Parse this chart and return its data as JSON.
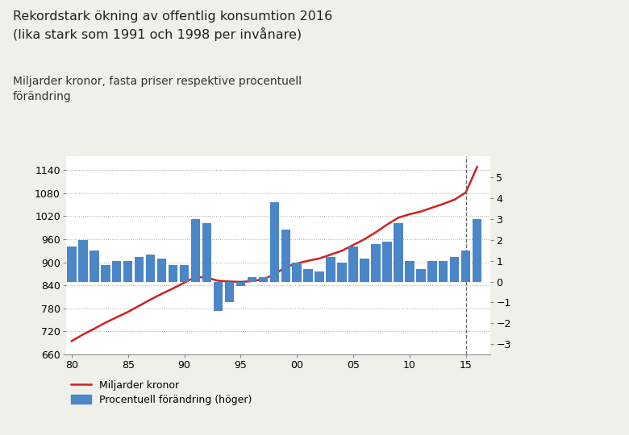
{
  "title": "Rekordstark ökning av offentlig konsumtion 2016\n(lika stark som 1991 och 1998 per invånare)",
  "subtitle": "Miljarder kronor, fasta priser respektive procentuell\nförändring",
  "background_color": "#f0f0ea",
  "plot_bg_color": "#ffffff",
  "bar_color": "#4a86c8",
  "line_color": "#cc2222",
  "title_fontsize": 11.5,
  "subtitle_fontsize": 10,
  "legend_fontsize": 9,
  "tick_fontsize": 9,
  "years": [
    1980,
    1981,
    1982,
    1983,
    1984,
    1985,
    1986,
    1987,
    1988,
    1989,
    1990,
    1991,
    1992,
    1993,
    1994,
    1995,
    1996,
    1997,
    1998,
    1999,
    2000,
    2001,
    2002,
    2003,
    2004,
    2005,
    2006,
    2007,
    2008,
    2009,
    2010,
    2011,
    2012,
    2013,
    2014,
    2015,
    2016
  ],
  "line_values": [
    695,
    712,
    727,
    743,
    757,
    771,
    787,
    803,
    818,
    832,
    847,
    862,
    860,
    852,
    850,
    849,
    851,
    856,
    868,
    888,
    897,
    904,
    910,
    920,
    930,
    945,
    960,
    978,
    998,
    1016,
    1025,
    1032,
    1042,
    1052,
    1063,
    1082,
    1148
  ],
  "bar_values": [
    1.7,
    2.0,
    1.5,
    0.8,
    1.0,
    1.0,
    1.2,
    1.3,
    1.1,
    0.8,
    0.8,
    3.0,
    2.8,
    -1.4,
    -1.0,
    -0.2,
    0.2,
    0.2,
    3.8,
    2.5,
    0.9,
    0.6,
    0.5,
    1.2,
    0.9,
    1.7,
    1.1,
    1.8,
    1.9,
    2.8,
    1.0,
    0.6,
    1.0,
    1.0,
    1.2,
    1.5,
    3.0
  ],
  "ylim_left": [
    660,
    1175
  ],
  "ylim_right": [
    -3.5,
    6.0
  ],
  "yticks_left": [
    660,
    720,
    780,
    840,
    900,
    960,
    1020,
    1080,
    1140
  ],
  "yticks_right": [
    -3,
    -2,
    -1,
    0,
    1,
    2,
    3,
    4,
    5
  ],
  "xtick_labels": [
    "80",
    "85",
    "90",
    "95",
    "00",
    "05",
    "10",
    "15"
  ],
  "xtick_positions": [
    1980,
    1985,
    1990,
    1995,
    2000,
    2005,
    2010,
    2015
  ],
  "xlim": [
    1979.5,
    2017.2
  ],
  "vline_x": 2015,
  "legend_line": "Miljarder kronor",
  "legend_bar": "Procentuell förändring (höger)"
}
